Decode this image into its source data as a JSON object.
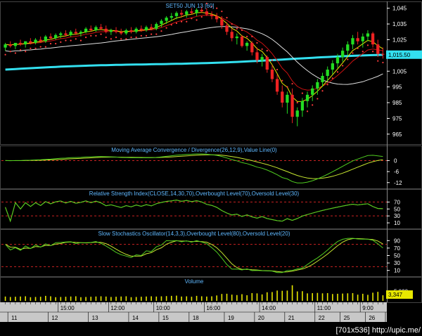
{
  "chart_data": {
    "type": "financial-multi-panel",
    "instrument_title": "SET50 JUN 13   [60]",
    "price_panel": {
      "yticks": [
        "1,045",
        "1,035",
        "1,025",
        "1,015",
        "1,005",
        "995",
        "985",
        "975",
        "965"
      ],
      "ytick_values": [
        1045,
        1035,
        1025,
        1015,
        1005,
        995,
        985,
        975,
        965
      ],
      "ylim": [
        960,
        1048
      ],
      "last_price_tag": "1,015.50",
      "last_price": 1015.5,
      "candles": [
        [
          1020,
          1023,
          1018,
          1022
        ],
        [
          1022,
          1024,
          1020,
          1021
        ],
        [
          1021,
          1023,
          1019,
          1023
        ],
        [
          1023,
          1025,
          1021,
          1022
        ],
        [
          1022,
          1024,
          1020,
          1024
        ],
        [
          1024,
          1026,
          1022,
          1023
        ],
        [
          1023,
          1026,
          1022,
          1025
        ],
        [
          1025,
          1027,
          1023,
          1024
        ],
        [
          1024,
          1028,
          1023,
          1027
        ],
        [
          1027,
          1029,
          1025,
          1026
        ],
        [
          1026,
          1029,
          1025,
          1028
        ],
        [
          1028,
          1030,
          1026,
          1029
        ],
        [
          1029,
          1031,
          1027,
          1028
        ],
        [
          1028,
          1031,
          1027,
          1030
        ],
        [
          1030,
          1032,
          1028,
          1029
        ],
        [
          1029,
          1031,
          1027,
          1030
        ],
        [
          1030,
          1033,
          1029,
          1032
        ],
        [
          1032,
          1034,
          1030,
          1031
        ],
        [
          1031,
          1034,
          1030,
          1033
        ],
        [
          1033,
          1035,
          1031,
          1032
        ],
        [
          1032,
          1034,
          1029,
          1030
        ],
        [
          1030,
          1032,
          1028,
          1031
        ],
        [
          1031,
          1033,
          1029,
          1030
        ],
        [
          1030,
          1032,
          1028,
          1029
        ],
        [
          1029,
          1032,
          1028,
          1031
        ],
        [
          1031,
          1033,
          1029,
          1030
        ],
        [
          1030,
          1033,
          1029,
          1032
        ],
        [
          1032,
          1034,
          1030,
          1031
        ],
        [
          1031,
          1034,
          1030,
          1033
        ],
        [
          1033,
          1035,
          1031,
          1032
        ],
        [
          1032,
          1036,
          1031,
          1035
        ],
        [
          1035,
          1038,
          1033,
          1037
        ],
        [
          1037,
          1040,
          1035,
          1039
        ],
        [
          1039,
          1042,
          1037,
          1040
        ],
        [
          1040,
          1043,
          1038,
          1042
        ],
        [
          1042,
          1044,
          1039,
          1041
        ],
        [
          1041,
          1044,
          1039,
          1043
        ],
        [
          1043,
          1045,
          1041,
          1042
        ],
        [
          1042,
          1045,
          1040,
          1044
        ],
        [
          1044,
          1046,
          1042,
          1043
        ],
        [
          1043,
          1045,
          1040,
          1041
        ],
        [
          1041,
          1043,
          1038,
          1040
        ],
        [
          1040,
          1042,
          1036,
          1038
        ],
        [
          1038,
          1040,
          1032,
          1034
        ],
        [
          1034,
          1036,
          1028,
          1030
        ],
        [
          1030,
          1032,
          1024,
          1026
        ],
        [
          1026,
          1029,
          1022,
          1027
        ],
        [
          1027,
          1028,
          1020,
          1021
        ],
        [
          1021,
          1024,
          1018,
          1023
        ],
        [
          1023,
          1024,
          1015,
          1017
        ],
        [
          1017,
          1020,
          1010,
          1012
        ],
        [
          1012,
          1016,
          1008,
          1014
        ],
        [
          1014,
          1015,
          1004,
          1006
        ],
        [
          1006,
          1009,
          998,
          1000
        ],
        [
          1000,
          1003,
          990,
          992
        ],
        [
          992,
          996,
          982,
          985
        ],
        [
          985,
          992,
          978,
          990
        ],
        [
          990,
          994,
          972,
          976
        ],
        [
          976,
          982,
          970,
          980
        ],
        [
          980,
          988,
          976,
          986
        ],
        [
          986,
          992,
          982,
          990
        ],
        [
          990,
          996,
          986,
          994
        ],
        [
          994,
          1000,
          990,
          998
        ],
        [
          998,
          1004,
          995,
          1002
        ],
        [
          1002,
          1008,
          999,
          1006
        ],
        [
          1006,
          1012,
          1003,
          1010
        ],
        [
          1010,
          1016,
          1007,
          1014
        ],
        [
          1014,
          1020,
          1011,
          1018
        ],
        [
          1018,
          1024,
          1015,
          1022
        ],
        [
          1022,
          1028,
          1019,
          1026
        ],
        [
          1026,
          1030,
          1022,
          1024
        ],
        [
          1024,
          1029,
          1020,
          1027
        ],
        [
          1027,
          1031,
          1024,
          1029
        ],
        [
          1029,
          1030,
          1020,
          1022
        ],
        [
          1022,
          1025,
          1014,
          1016
        ],
        [
          1016,
          1020,
          1013,
          1015.5
        ]
      ]
    },
    "macd_panel": {
      "title": "Moving Average Convergence / Divergence(26,12,9),Value Line(0)",
      "yticks": [
        "0",
        "-6",
        "-12"
      ],
      "ytick_values": [
        0,
        -6,
        -12
      ],
      "ylim": [
        -14,
        4
      ],
      "reference_levels": [
        0
      ]
    },
    "rsi_panel": {
      "title": "Relative Strength Index(CLOSE,14,30,70),Overbought Level(70),Oversold Level(30)",
      "yticks": [
        "70",
        "50",
        "30",
        "10"
      ],
      "ytick_values": [
        70,
        50,
        30,
        10
      ],
      "ylim": [
        0,
        85
      ],
      "reference_levels": [
        70,
        30
      ]
    },
    "stoch_panel": {
      "title": "Slow Stochastics Oscillator(14,3,3),Overbought Level(80),Oversold Level(20)",
      "yticks": [
        "90",
        "70",
        "50",
        "30",
        "10"
      ],
      "ytick_values": [
        90,
        70,
        50,
        30,
        10
      ],
      "ylim": [
        0,
        100
      ],
      "reference_levels": [
        80,
        20
      ]
    },
    "volume_panel": {
      "title": "Volume",
      "yticks": [
        "5,000"
      ],
      "ytick_values": [
        5000
      ],
      "ylim": [
        0,
        9000
      ],
      "last_volume_tag": "3,347",
      "last_volume": 3347
    },
    "time_labels": [
      "15:00",
      "12:00",
      "10:00",
      "16:00",
      "14:00",
      "11:00",
      "9:00"
    ],
    "time_label_bar_index": [
      11,
      21,
      30,
      40,
      51,
      62,
      71
    ],
    "date_labels": [
      "11",
      "12",
      "13",
      "14",
      "15",
      "18",
      "19",
      "20",
      "21",
      "22",
      "25",
      "26",
      "27"
    ],
    "date_label_bar_index": [
      1,
      9,
      17,
      25,
      31,
      37,
      44,
      50,
      56,
      62,
      67,
      72,
      76
    ]
  },
  "watermark": "[701x536]  http://upic.me/",
  "colors": {
    "background": "#000000",
    "title_blue": "#5fb8ff",
    "up": "#22dd22",
    "down": "#ee2222",
    "ema_fast": "#e8e800",
    "ema_mid": "#cc1111",
    "ma_white": "#e0e0e0",
    "ma_long": "#33e0f0",
    "sar": "#ff3b3b",
    "ref_line": "#cc2222",
    "axis_panel": "#ffffff",
    "signal": "#c8e830",
    "osc_main": "#4fcc20",
    "volume": "#e8e800",
    "price_tag": "#33e0f0",
    "volume_tag": "#e8e800"
  }
}
